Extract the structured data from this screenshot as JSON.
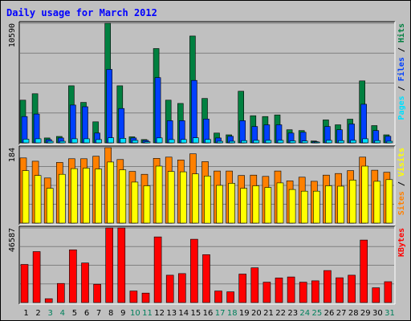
{
  "chart_data": {
    "type": "bar",
    "title": "Daily usage for March 2012",
    "categories": [
      "1",
      "2",
      "3",
      "4",
      "5",
      "6",
      "7",
      "8",
      "9",
      "10",
      "11",
      "12",
      "13",
      "14",
      "15",
      "16",
      "17",
      "18",
      "19",
      "20",
      "21",
      "22",
      "23",
      "24",
      "25",
      "26",
      "27",
      "28",
      "29",
      "30",
      "31"
    ],
    "weekend_days": [
      "3",
      "4",
      "10",
      "11",
      "17",
      "18",
      "24",
      "25",
      "31"
    ],
    "colors": {
      "hits": "#008040",
      "files": "#0040ff",
      "pages": "#00e0ff",
      "visits": "#ff8000",
      "sites": "#ffff00",
      "kbytes": "#ff0000",
      "weekday_label": "#000000",
      "weekend_label": "#00805c",
      "title": "#0000ff"
    },
    "panels": [
      {
        "name": "hits_files_pages",
        "max_label": "10590",
        "ymax": 10590,
        "right_label_parts": [
          {
            "text": "Pages",
            "color": "#00e0ff"
          },
          {
            "text": " / ",
            "color": "#000000"
          },
          {
            "text": "Files",
            "color": "#0040ff"
          },
          {
            "text": " / ",
            "color": "#000000"
          },
          {
            "text": "Hits",
            "color": "#008040"
          }
        ],
        "series": [
          {
            "key": "hits",
            "values": [
              3780,
              4350,
              430,
              570,
              5050,
              3580,
              1860,
              10590,
              5050,
              530,
              290,
              8350,
              3780,
              3490,
              9460,
              3930,
              870,
              710,
              4570,
              2400,
              2330,
              2470,
              1160,
              1090,
              160,
              2030,
              1600,
              2100,
              5490,
              1530,
              710
            ]
          },
          {
            "key": "files",
            "values": [
              2330,
              2550,
              290,
              430,
              3350,
              3200,
              870,
              6500,
              3040,
              430,
              220,
              5780,
              1960,
              1960,
              5530,
              2110,
              430,
              580,
              1960,
              1450,
              1600,
              1600,
              870,
              940,
              110,
              1450,
              1160,
              1670,
              3420,
              1090,
              580
            ]
          },
          {
            "key": "pages",
            "values": [
              330,
              360,
              140,
              140,
              360,
              360,
              290,
              450,
              400,
              220,
              100,
              440,
              290,
              300,
              450,
              300,
              140,
              140,
              200,
              220,
              220,
              220,
              180,
              160,
              60,
              220,
              200,
              220,
              360,
              200,
              140
            ]
          }
        ]
      },
      {
        "name": "visits_sites",
        "max_label": "184",
        "ymax": 184,
        "right_label_parts": [
          {
            "text": "Sites",
            "color": "#ff8000"
          },
          {
            "text": " / ",
            "color": "#000000"
          },
          {
            "text": "Visits",
            "color": "#ffff00"
          }
        ],
        "series": [
          {
            "key": "visits",
            "values": [
              159,
              151,
              110,
              148,
              157,
              157,
              163,
              184,
              155,
              126,
              119,
              158,
              161,
              154,
              169,
              150,
              127,
              127,
              116,
              117,
              114,
              127,
              103,
              112,
              102,
              117,
              121,
              128,
              161,
              129,
              124
            ]
          },
          {
            "key": "sites",
            "values": [
              128,
              116,
              85,
              119,
              133,
              134,
              132,
              149,
              130,
              100,
              91,
              139,
              126,
              125,
              120,
              115,
              92,
              97,
              85,
              91,
              87,
              98,
              82,
              78,
              78,
              91,
              90,
              105,
              139,
              102,
              106
            ]
          }
        ]
      },
      {
        "name": "kbytes",
        "max_label": "46587",
        "ymax": 46587,
        "right_label_parts": [
          {
            "text": "KBytes",
            "color": "#ff0000"
          }
        ],
        "series": [
          {
            "key": "kbytes",
            "values": [
              23800,
              31800,
              2400,
              11900,
              32900,
              24700,
              11400,
              46587,
              46587,
              7200,
              5900,
              41000,
              17100,
              18100,
              39500,
              29900,
              7200,
              6700,
              17800,
              21700,
              12700,
              15400,
              16000,
              12700,
              13600,
              20000,
              15500,
              17100,
              39000,
              9200,
              13000
            ]
          }
        ]
      }
    ]
  }
}
